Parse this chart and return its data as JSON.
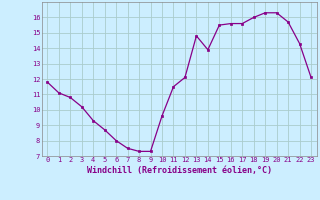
{
  "x": [
    0,
    1,
    2,
    3,
    4,
    5,
    6,
    7,
    8,
    9,
    10,
    11,
    12,
    13,
    14,
    15,
    16,
    17,
    18,
    19,
    20,
    21,
    22,
    23
  ],
  "y": [
    11.8,
    11.1,
    10.8,
    10.2,
    9.3,
    8.7,
    8.0,
    7.5,
    7.3,
    7.3,
    9.6,
    11.5,
    12.1,
    14.8,
    13.9,
    15.5,
    15.6,
    15.6,
    16.0,
    16.3,
    16.3,
    15.7,
    14.3,
    12.1
  ],
  "ylim": [
    7,
    17
  ],
  "yticks": [
    7,
    8,
    9,
    10,
    11,
    12,
    13,
    14,
    15,
    16
  ],
  "xticks": [
    0,
    1,
    2,
    3,
    4,
    5,
    6,
    7,
    8,
    9,
    10,
    11,
    12,
    13,
    14,
    15,
    16,
    17,
    18,
    19,
    20,
    21,
    22,
    23
  ],
  "line_color": "#880088",
  "marker_color": "#880088",
  "bg_color": "#cceeff",
  "grid_color": "#aacccc",
  "xlabel": "Windchill (Refroidissement éolien,°C)",
  "xlabel_color": "#880088",
  "tick_color": "#880088"
}
